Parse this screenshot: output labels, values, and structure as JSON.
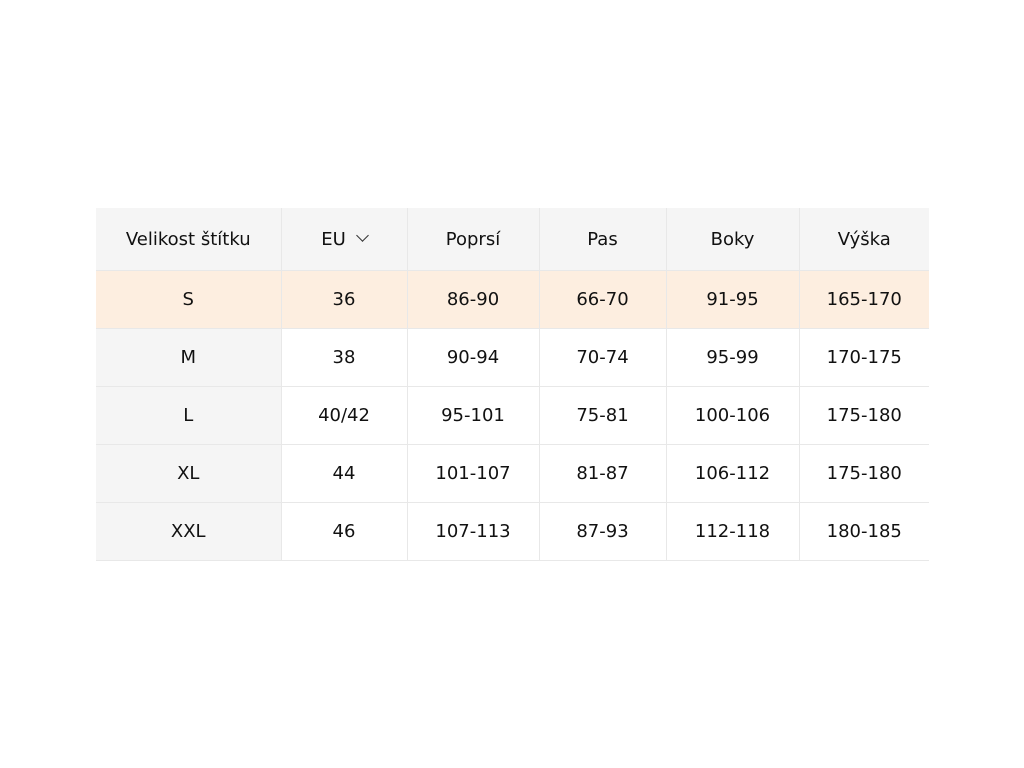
{
  "headers": [
    "Velikost štítku",
    "EU",
    "Poprsí",
    "Pas",
    "Boky",
    "Výška"
  ],
  "unit_selector": {
    "value": "EU",
    "icon": "chevron-down-icon"
  },
  "highlight_color": "#fdeee0",
  "rows": [
    [
      "S",
      "36",
      "86-90",
      "66-70",
      "91-95",
      "165-170"
    ],
    [
      "M",
      "38",
      "90-94",
      "70-74",
      "95-99",
      "170-175"
    ],
    [
      "L",
      "40/42",
      "95-101",
      "75-81",
      "100-106",
      "175-180"
    ],
    [
      "XL",
      "44",
      "101-107",
      "81-87",
      "106-112",
      "175-180"
    ],
    [
      "XXL",
      "46",
      "107-113",
      "87-93",
      "112-118",
      "180-185"
    ]
  ],
  "highlighted_row": 0
}
